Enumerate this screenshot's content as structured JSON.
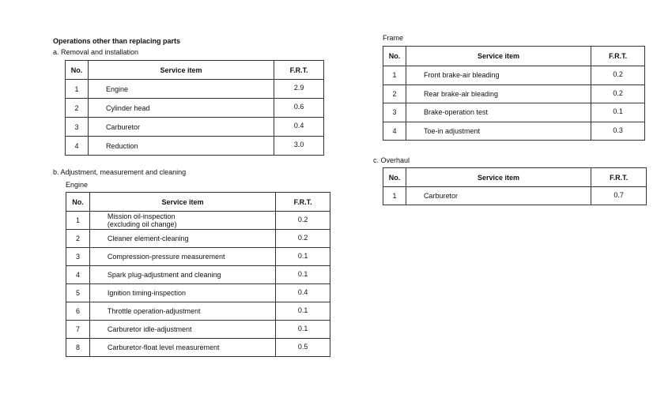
{
  "heading": "Operations other than replacing parts",
  "section_a": {
    "title": "a.  Removal and installation",
    "headers": [
      "No.",
      "Service item",
      "F.R.T."
    ],
    "rows": [
      {
        "no": "1",
        "item": "Engine",
        "frt": "2.9"
      },
      {
        "no": "2",
        "item": "Cylinder head",
        "frt": "0.6"
      },
      {
        "no": "3",
        "item": "Carburetor",
        "frt": "0.4"
      },
      {
        "no": "4",
        "item": "Reduction",
        "frt": "3.0"
      }
    ]
  },
  "section_b": {
    "title": "b.  Adjustment, measurement and cleaning",
    "engine": {
      "label": "Engine",
      "headers": [
        "No.",
        "Service item",
        "F.R.T."
      ],
      "rows": [
        {
          "no": "1",
          "item": "Mission oil-inspection",
          "item2": "(excluding oil change)",
          "frt": "0.2"
        },
        {
          "no": "2",
          "item": "Cleaner element-cleaning",
          "frt": "0.2"
        },
        {
          "no": "3",
          "item": "Compression-pressure measurement",
          "frt": "0.1"
        },
        {
          "no": "4",
          "item": "Spark plug-adjustment and cleaning",
          "frt": "0.1"
        },
        {
          "no": "5",
          "item": "Ignition timing-inspection",
          "frt": "0.4"
        },
        {
          "no": "6",
          "item": "Throttle operation-adjustment",
          "frt": "0.1"
        },
        {
          "no": "7",
          "item": "Carburetor idle-adjustment",
          "frt": "0.1"
        },
        {
          "no": "8",
          "item": "Carburetor-float level measurement",
          "frt": "0.5"
        }
      ]
    },
    "frame": {
      "label": "Frame",
      "headers": [
        "No.",
        "Service item",
        "F.R.T."
      ],
      "rows": [
        {
          "no": "1",
          "item": "Front brake-air bleading",
          "frt": "0.2"
        },
        {
          "no": "2",
          "item": "Rear brake-air bleading",
          "frt": "0.2"
        },
        {
          "no": "3",
          "item": "Brake-operation test",
          "frt": "0.1"
        },
        {
          "no": "4",
          "item": "Toe-in adjustment",
          "frt": "0.3"
        }
      ]
    }
  },
  "section_c": {
    "title": "c.  Overhaul",
    "headers": [
      "No.",
      "Service item",
      "F.R.T."
    ],
    "rows": [
      {
        "no": "1",
        "item": "Carburetor",
        "frt": "0.7"
      }
    ]
  }
}
